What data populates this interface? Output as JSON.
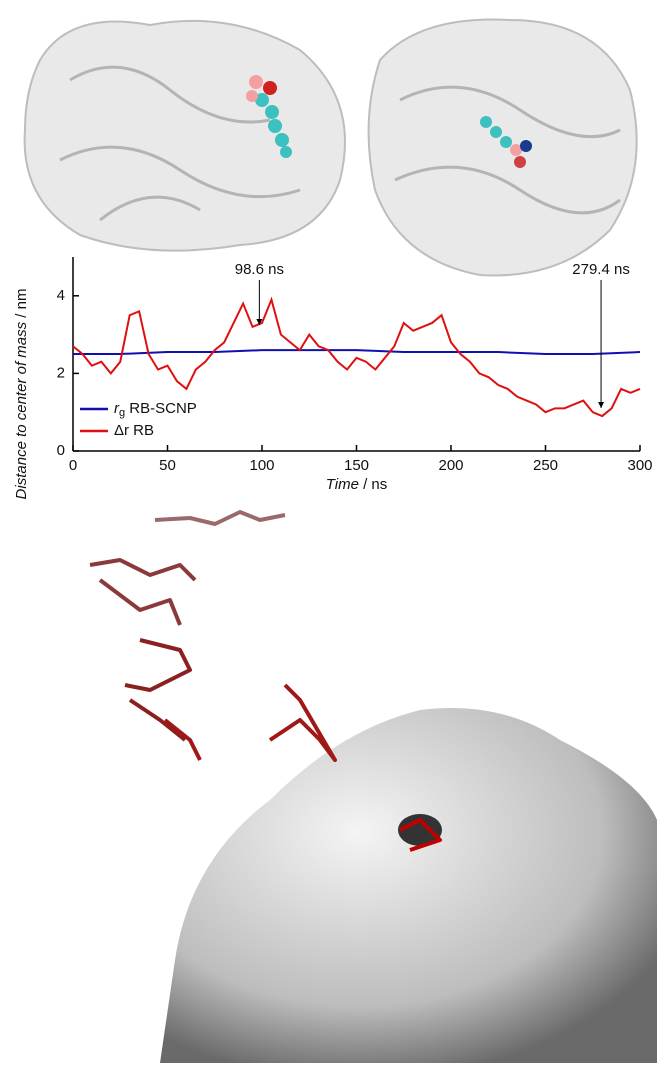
{
  "chart_data": {
    "type": "line",
    "xlabel": "Time / ns",
    "ylabel": "Distance to center of mass / nm",
    "xlim": [
      0,
      300
    ],
    "ylim": [
      0,
      5
    ],
    "xticks": [
      0,
      50,
      100,
      150,
      200,
      250,
      300
    ],
    "yticks": [
      0,
      2,
      4
    ],
    "annotations": [
      {
        "text": "98.6 ns",
        "x": 98.6
      },
      {
        "text": "279.4 ns",
        "x": 279.4
      }
    ],
    "series": [
      {
        "name": "rg RB-SCNP",
        "color": "#1010b0",
        "x": [
          0,
          25,
          50,
          75,
          100,
          125,
          150,
          175,
          200,
          225,
          250,
          275,
          300
        ],
        "values": [
          2.5,
          2.5,
          2.55,
          2.55,
          2.6,
          2.6,
          2.6,
          2.55,
          2.55,
          2.55,
          2.5,
          2.5,
          2.55
        ]
      },
      {
        "name": "Δr RB",
        "color": "#e01010",
        "x": [
          0,
          5,
          10,
          15,
          20,
          25,
          30,
          35,
          40,
          45,
          50,
          55,
          60,
          65,
          70,
          75,
          80,
          85,
          90,
          95,
          100,
          105,
          110,
          115,
          120,
          125,
          130,
          135,
          140,
          145,
          150,
          155,
          160,
          165,
          170,
          175,
          180,
          185,
          190,
          195,
          200,
          205,
          210,
          215,
          220,
          225,
          230,
          235,
          240,
          245,
          250,
          255,
          260,
          265,
          270,
          275,
          280,
          285,
          290,
          295,
          300
        ],
        "values": [
          2.7,
          2.5,
          2.2,
          2.3,
          2.0,
          2.3,
          3.5,
          3.6,
          2.5,
          2.1,
          2.2,
          1.8,
          1.6,
          2.1,
          2.3,
          2.6,
          2.8,
          3.3,
          3.8,
          3.2,
          3.3,
          3.9,
          3.0,
          2.8,
          2.6,
          3.0,
          2.7,
          2.6,
          2.3,
          2.1,
          2.4,
          2.3,
          2.1,
          2.4,
          2.7,
          3.3,
          3.1,
          3.2,
          3.3,
          3.5,
          2.8,
          2.5,
          2.3,
          2.0,
          1.9,
          1.7,
          1.6,
          1.4,
          1.3,
          1.2,
          1.0,
          1.1,
          1.1,
          1.2,
          1.3,
          1.0,
          0.9,
          1.1,
          1.6,
          1.5,
          1.6
        ]
      }
    ]
  }
}
